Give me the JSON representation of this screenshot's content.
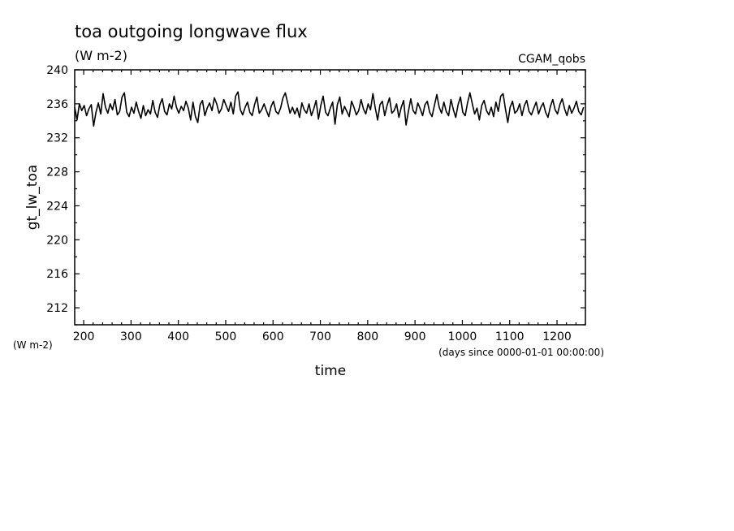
{
  "chart_data": {
    "type": "line",
    "title": "toa outgoing longwave flux",
    "subtitle": "(W m-2)",
    "dataset_label": "CGAM_qobs",
    "ylabel": "gt_lw_toa",
    "yunits": "(W m-2)",
    "xlabel": "time",
    "xunits": "(days since 0000-01-01 00:00:00)",
    "xlim": [
      181,
      1260
    ],
    "ylim": [
      210,
      240
    ],
    "xticks": [
      200,
      300,
      400,
      500,
      600,
      700,
      800,
      900,
      1000,
      1100,
      1200
    ],
    "yticks": [
      212,
      216,
      220,
      224,
      228,
      232,
      236,
      240
    ],
    "grid": false,
    "series": [
      {
        "x_start": 181,
        "x_step": 5,
        "values": [
          235.6,
          234.1,
          236.0,
          235.2,
          235.8,
          234.6,
          235.4,
          235.9,
          233.4,
          235.0,
          236.1,
          234.8,
          237.2,
          235.6,
          234.9,
          236.0,
          235.3,
          236.5,
          234.7,
          235.1,
          236.8,
          237.3,
          235.0,
          234.5,
          235.6,
          234.9,
          236.2,
          235.1,
          234.3,
          235.8,
          234.6,
          235.3,
          234.8,
          236.4,
          235.0,
          234.4,
          235.9,
          236.6,
          235.1,
          234.7,
          236.0,
          235.4,
          236.9,
          235.6,
          234.9,
          235.7,
          235.2,
          236.3,
          235.5,
          234.1,
          236.2,
          234.5,
          233.8,
          235.9,
          236.4,
          234.6,
          235.5,
          236.1,
          235.2,
          236.7,
          236.0,
          234.9,
          235.4,
          236.5,
          235.8,
          235.1,
          236.2,
          234.8,
          236.9,
          237.4,
          235.3,
          234.7,
          235.6,
          236.2,
          235.0,
          234.6,
          235.9,
          236.8,
          234.9,
          235.3,
          236.0,
          235.2,
          234.5,
          235.7,
          236.3,
          235.1,
          234.8,
          235.5,
          236.7,
          237.3,
          236.1,
          234.9,
          235.6,
          234.8,
          235.5,
          234.4,
          236.1,
          235.3,
          234.9,
          236.0,
          234.6,
          235.4,
          236.4,
          234.2,
          235.8,
          236.9,
          235.0,
          234.6,
          235.5,
          236.2,
          233.6,
          235.9,
          236.8,
          234.8,
          235.7,
          235.1,
          234.5,
          236.3,
          235.6,
          234.7,
          235.2,
          236.5,
          235.4,
          234.8,
          236.0,
          235.3,
          237.2,
          235.5,
          234.1,
          235.9,
          236.3,
          234.6,
          235.8,
          236.7,
          234.9,
          235.2,
          236.0,
          234.4,
          235.6,
          236.4,
          233.5,
          235.1,
          236.6,
          235.2,
          234.8,
          236.1,
          235.4,
          234.6,
          235.9,
          236.3,
          235.0,
          234.5,
          235.8,
          237.1,
          235.6,
          234.9,
          236.2,
          235.1,
          234.6,
          236.5,
          235.3,
          234.4,
          235.9,
          236.8,
          235.0,
          234.6,
          236.1,
          237.3,
          236.0,
          234.8,
          235.5,
          234.1,
          235.8,
          236.4,
          235.2,
          234.7,
          235.6,
          234.5,
          236.2,
          235.1,
          236.9,
          237.2,
          235.4,
          233.8,
          235.6,
          236.3,
          234.9,
          235.2,
          236.0,
          234.6,
          235.8,
          236.4,
          235.1,
          234.7,
          235.5,
          236.2,
          234.8,
          235.6,
          236.1,
          235.0,
          234.4,
          235.7,
          236.5,
          235.3,
          234.8,
          235.9,
          236.6,
          235.4,
          234.6,
          235.8,
          234.9,
          235.5,
          236.3,
          235.1,
          234.7,
          235.6,
          236.0,
          235.2,
          234.5,
          235.9,
          236.4,
          233.6,
          235.2,
          236.1,
          234.3
        ]
      }
    ]
  }
}
